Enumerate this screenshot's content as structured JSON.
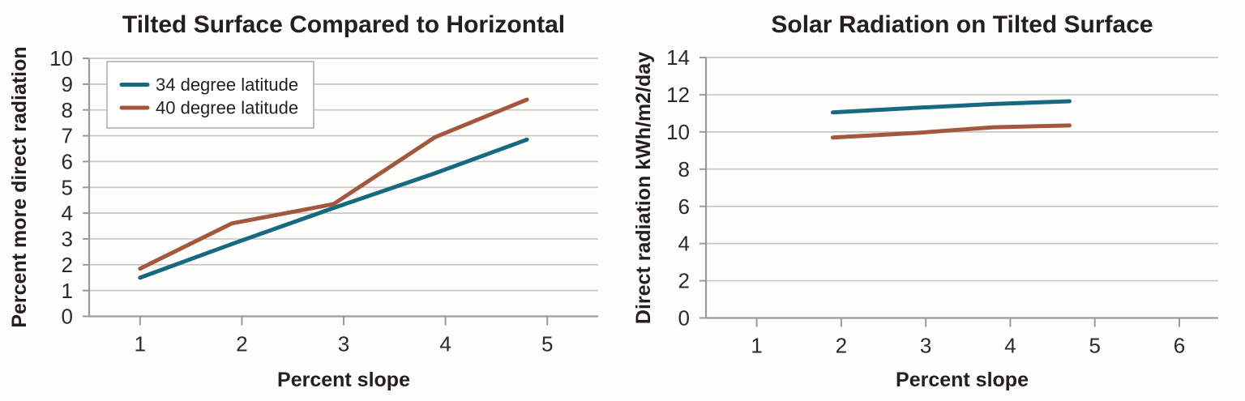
{
  "figure": {
    "background": "#FDFDFB",
    "grid_color": "#C7C7C7",
    "axis_color": "#9A9A9A",
    "text_color": "#231F20"
  },
  "chart_data": [
    {
      "type": "line",
      "title": "Tilted Surface Compared to Horizontal",
      "xlabel": "Percent slope",
      "ylabel": "Percent more direct radiation",
      "xlim": [
        0.5,
        5.5
      ],
      "ylim": [
        0,
        10
      ],
      "x_ticks": [
        1,
        2,
        3,
        4,
        5
      ],
      "y_ticks": [
        0,
        1,
        2,
        3,
        4,
        5,
        6,
        7,
        8,
        9,
        10
      ],
      "grid": "horizontal",
      "legend_position": "top-left",
      "series": [
        {
          "name": "34 degree latitude",
          "color": "#17697F",
          "points": [
            [
              1.0,
              1.5
            ],
            [
              1.9,
              2.8
            ],
            [
              2.9,
              4.2
            ],
            [
              3.9,
              5.55
            ],
            [
              4.8,
              6.85
            ]
          ]
        },
        {
          "name": "40 degree latitude",
          "color": "#A3583E",
          "points": [
            [
              1.0,
              1.85
            ],
            [
              1.9,
              3.6
            ],
            [
              2.9,
              4.35
            ],
            [
              3.9,
              6.95
            ],
            [
              4.8,
              8.4
            ]
          ]
        }
      ]
    },
    {
      "type": "line",
      "title": "Solar Radiation on Tilted Surface",
      "xlabel": "Percent slope",
      "ylabel": "Direct radiation kWh/m2/day",
      "xlim": [
        0.4,
        6.46
      ],
      "ylim": [
        0,
        14
      ],
      "x_ticks": [
        1,
        2,
        3,
        4,
        5,
        6
      ],
      "y_ticks": [
        0,
        2,
        4,
        6,
        8,
        10,
        12,
        14
      ],
      "grid": "horizontal",
      "legend_position": "none",
      "series": [
        {
          "name": "34 degree latitude",
          "color": "#17697F",
          "points": [
            [
              1.9,
              11.05
            ],
            [
              2.9,
              11.3
            ],
            [
              3.8,
              11.5
            ],
            [
              4.7,
              11.65
            ]
          ]
        },
        {
          "name": "40 degree latitude",
          "color": "#A3583E",
          "points": [
            [
              1.9,
              9.7
            ],
            [
              2.9,
              9.95
            ],
            [
              3.8,
              10.25
            ],
            [
              4.7,
              10.35
            ]
          ]
        }
      ]
    }
  ]
}
